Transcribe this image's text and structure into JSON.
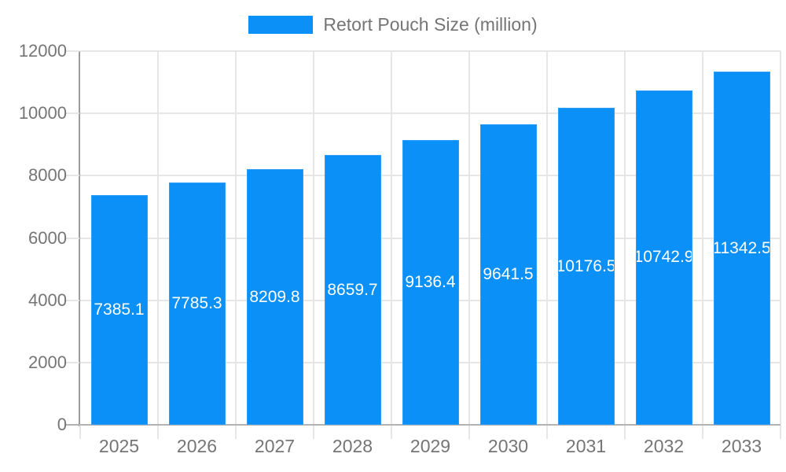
{
  "chart_data": {
    "type": "bar",
    "title": "Retort Pouch Size (million)",
    "legend": {
      "label": "Retort Pouch Size (million)",
      "position": "top-center"
    },
    "categories": [
      "2025",
      "2026",
      "2027",
      "2028",
      "2029",
      "2030",
      "2031",
      "2032",
      "2033"
    ],
    "series": [
      {
        "name": "Retort Pouch Size (million)",
        "values": [
          7385.1,
          7785.3,
          8209.8,
          8659.7,
          9136.4,
          9641.5,
          10176.5,
          10742.9,
          11342.5
        ],
        "labels": [
          "7385.1",
          "7785.3",
          "8209.8",
          "8659.7",
          "9136.4",
          "9641.5",
          "10176.5",
          "10742.9",
          "11342.5"
        ]
      }
    ],
    "xlabel": "",
    "ylabel": "",
    "ylim": [
      0,
      12000
    ],
    "yticks": [
      0,
      2000,
      4000,
      6000,
      8000,
      10000,
      12000
    ],
    "ytick_labels": [
      "0",
      "2000",
      "4000",
      "6000",
      "8000",
      "10000",
      "12000"
    ],
    "grid": true,
    "colors": {
      "bar_fill": "#0a90f7",
      "bar_stroke": "#2e9df8",
      "bar_value_text": "#ffffff",
      "grid_line": "#e6e6e6",
      "axis_line_y": "#9b9b9b",
      "axis_line_x": "#b3b3b3",
      "tick_text": "#757575",
      "legend_text": "#757575",
      "background": "#ffffff"
    }
  }
}
